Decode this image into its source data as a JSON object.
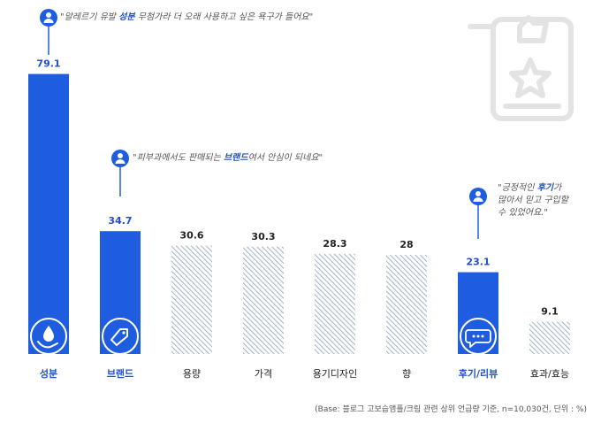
{
  "chart_data": {
    "type": "bar",
    "categories": [
      "성분",
      "브랜드",
      "용량",
      "가격",
      "용기디자인",
      "향",
      "후기/리뷰",
      "효과/효능"
    ],
    "values": [
      79.1,
      34.7,
      30.6,
      30.3,
      28.3,
      28,
      23.1,
      9.1
    ],
    "highlighted": [
      "성분",
      "브랜드",
      "후기/리뷰"
    ],
    "colors": {
      "highlight": "#1e5de0",
      "highlight_label": "#1e50c8",
      "hatch": "#9fb3c8",
      "text": "#222222"
    },
    "icons": {
      "성분": "hand-drop-icon",
      "브랜드": "price-tag-icon",
      "후기/리뷰": "speech-bubble-icon"
    },
    "footnote": "(Base: 블로그 고보습앰플/크림 관련 상위 언급량 기준, n=10,030건, 단위 : %)"
  },
  "quotes": [
    {
      "pre": "\"알레르기 유발 ",
      "em": "성분",
      "post": " 무첨가라 더 오래 사용하고 싶은 욕구가 들어요\""
    },
    {
      "pre": "\"피부과에서도 판매되는 ",
      "em": "브랜드",
      "post": "여서 안심이 되네요\""
    },
    {
      "line1_pre": "\"긍정적인 ",
      "line1_em": "후기",
      "line1_post": "가",
      "line2": "많아서 믿고 구입할",
      "line3": "수 있었어요.\""
    }
  ],
  "decor": {
    "icon": "review-document-icon"
  }
}
